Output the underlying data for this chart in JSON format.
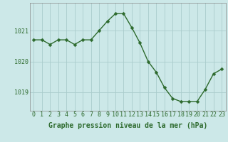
{
  "x": [
    0,
    1,
    2,
    3,
    4,
    5,
    6,
    7,
    8,
    9,
    10,
    11,
    12,
    13,
    14,
    15,
    16,
    17,
    18,
    19,
    20,
    21,
    22,
    23
  ],
  "y": [
    1020.7,
    1020.7,
    1020.55,
    1020.7,
    1020.7,
    1020.55,
    1020.7,
    1020.7,
    1021.0,
    1021.3,
    1021.55,
    1021.55,
    1021.1,
    1020.6,
    1020.0,
    1019.65,
    1019.15,
    1018.8,
    1018.7,
    1018.7,
    1018.7,
    1019.1,
    1019.6,
    1019.75
  ],
  "line_color": "#2d6a2d",
  "marker_color": "#2d6a2d",
  "bg_color": "#cce8e8",
  "grid_color": "#aacccc",
  "axis_label_color": "#2d6a2d",
  "tick_label_color": "#2d6a2d",
  "xlabel": "Graphe pression niveau de la mer (hPa)",
  "ylim": [
    1018.4,
    1021.9
  ],
  "ytick_values": [
    1019,
    1020,
    1021
  ],
  "xtick_values": [
    0,
    1,
    2,
    3,
    4,
    5,
    6,
    7,
    8,
    9,
    10,
    11,
    12,
    13,
    14,
    15,
    16,
    17,
    18,
    19,
    20,
    21,
    22,
    23
  ],
  "xlabel_fontsize": 7.0,
  "tick_fontsize": 6.0,
  "marker_size": 2.5,
  "line_width": 1.0
}
